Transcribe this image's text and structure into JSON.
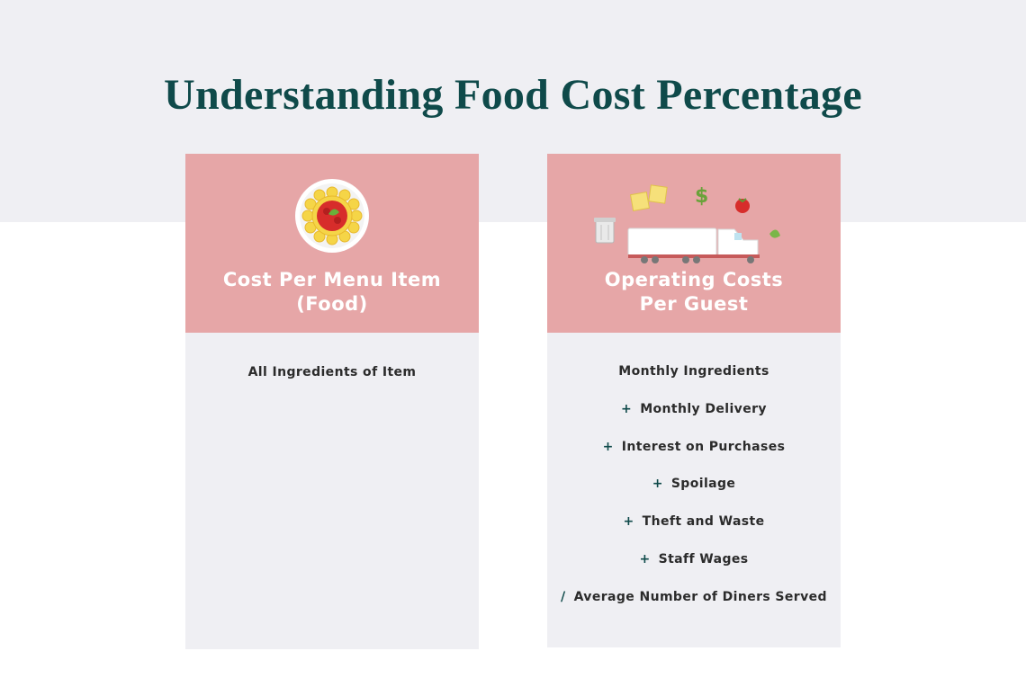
{
  "title": "Understanding Food Cost Percentage",
  "cards": [
    {
      "title_line1": "Cost Per Menu Item",
      "title_line2": "(Food)",
      "icon": "pasta-plate-icon",
      "items": [
        {
          "op": "",
          "label": "All Ingredients of Item"
        }
      ]
    },
    {
      "title_line1": "Operating Costs",
      "title_line2": "Per Guest",
      "icon": "delivery-truck-icon",
      "items": [
        {
          "op": "",
          "label": "Monthly Ingredients"
        },
        {
          "op": "+",
          "label": "Monthly Delivery"
        },
        {
          "op": "+",
          "label": "Interest on Purchases"
        },
        {
          "op": "+",
          "label": "Spoilage"
        },
        {
          "op": "+",
          "label": "Theft and Waste"
        },
        {
          "op": "+",
          "label": "Staff Wages"
        },
        {
          "op": "/",
          "label": "Average Number of Diners Served"
        }
      ]
    }
  ],
  "colors": {
    "title": "#0f4a4a",
    "card_header": "#e6a6a7",
    "card_body": "#efeff3",
    "operator": "#0f4a4a"
  }
}
